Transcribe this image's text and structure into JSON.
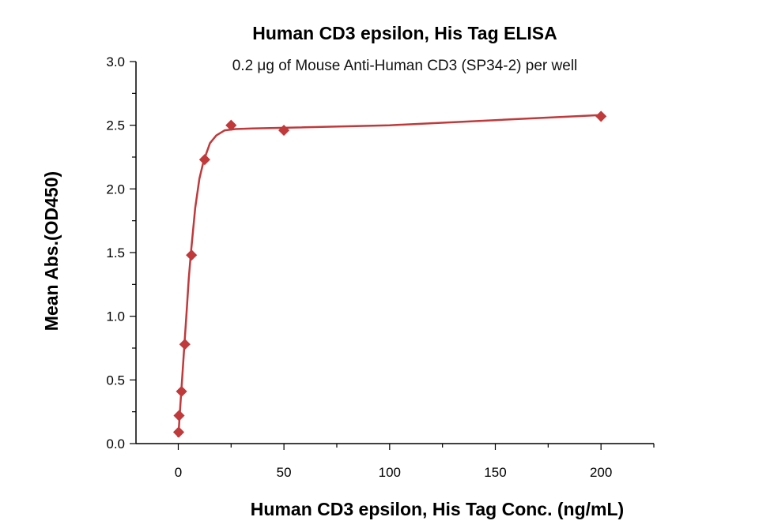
{
  "chart_data": {
    "type": "scatter",
    "title": "Human CD3 epsilon, His Tag ELISA",
    "subtitle": "0.2 μg of Mouse Anti-Human CD3 (SP34-2) per well",
    "xlabel": "Human CD3 epsilon, His Tag Conc. (ng/mL)",
    "ylabel": "Mean Abs.(OD450)",
    "xlim": [
      -20,
      225
    ],
    "ylim": [
      0,
      3.0
    ],
    "x_ticks": [
      0,
      50,
      100,
      150,
      200
    ],
    "x_tick_labels": [
      "0",
      "50",
      "100",
      "150",
      "200"
    ],
    "y_ticks": [
      0,
      0.5,
      1.0,
      1.5,
      2.0,
      2.5,
      3.0
    ],
    "y_tick_labels": [
      "0.0",
      "0.5",
      "1.0",
      "1.5",
      "2.0",
      "2.5",
      "3.0"
    ],
    "grid": false,
    "series": [
      {
        "color": "#c0393b",
        "marker": "diamond",
        "points": [
          {
            "x": 0.2,
            "y": 0.09
          },
          {
            "x": 0.39,
            "y": 0.22
          },
          {
            "x": 1.56,
            "y": 0.41
          },
          {
            "x": 3.13,
            "y": 0.78
          },
          {
            "x": 6.25,
            "y": 1.48
          },
          {
            "x": 12.5,
            "y": 2.23
          },
          {
            "x": 25,
            "y": 2.5
          },
          {
            "x": 50,
            "y": 2.46
          },
          {
            "x": 200,
            "y": 2.57
          }
        ],
        "fit_curve": [
          {
            "x": 0,
            "y": 0.05
          },
          {
            "x": 1,
            "y": 0.3
          },
          {
            "x": 2,
            "y": 0.55
          },
          {
            "x": 3,
            "y": 0.8
          },
          {
            "x": 4,
            "y": 1.05
          },
          {
            "x": 5,
            "y": 1.3
          },
          {
            "x": 6,
            "y": 1.5
          },
          {
            "x": 8,
            "y": 1.85
          },
          {
            "x": 10,
            "y": 2.08
          },
          {
            "x": 12,
            "y": 2.22
          },
          {
            "x": 15,
            "y": 2.36
          },
          {
            "x": 18,
            "y": 2.42
          },
          {
            "x": 22,
            "y": 2.46
          },
          {
            "x": 27,
            "y": 2.47
          },
          {
            "x": 35,
            "y": 2.475
          },
          {
            "x": 50,
            "y": 2.48
          },
          {
            "x": 100,
            "y": 2.5
          },
          {
            "x": 150,
            "y": 2.54
          },
          {
            "x": 200,
            "y": 2.58
          }
        ]
      }
    ]
  }
}
